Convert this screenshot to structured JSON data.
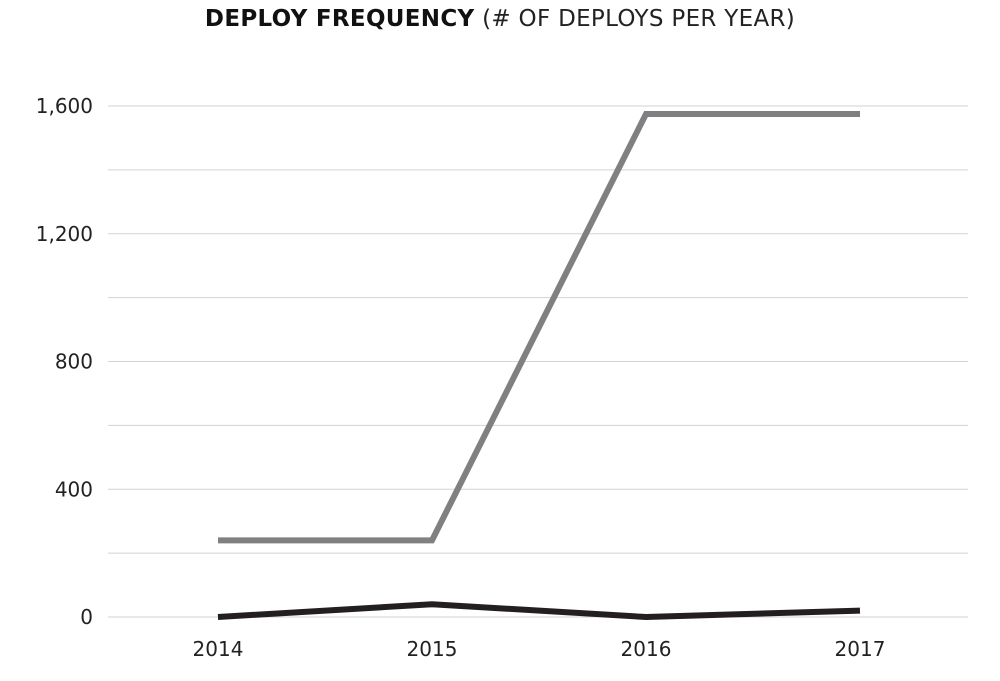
{
  "chart_data": {
    "type": "line",
    "title": "DEPLOY  FREQUENCY",
    "subtitle": "(# OF DEPLOYS PER YEAR)",
    "xlabel": "",
    "ylabel": "",
    "categories": [
      "2014",
      "2015",
      "2016",
      "2017"
    ],
    "y_ticks": [
      0,
      400,
      800,
      1200,
      1600
    ],
    "y_tick_labels": [
      "0",
      "400",
      "800",
      "1,200",
      "1,600"
    ],
    "ylim": [
      0,
      1600
    ],
    "grid": true,
    "legend": "none",
    "series": [
      {
        "color": "#808083",
        "values": [
          240,
          240,
          1575,
          1575
        ]
      },
      {
        "color": "#231f20",
        "values": [
          0,
          40,
          0,
          20
        ]
      }
    ]
  }
}
